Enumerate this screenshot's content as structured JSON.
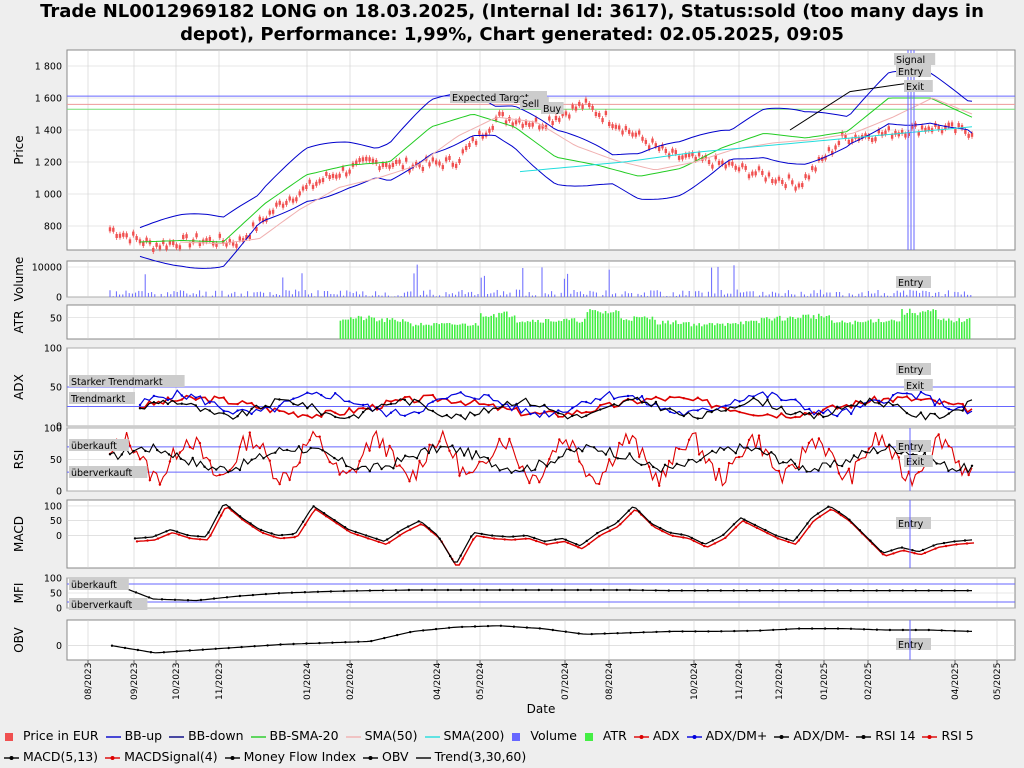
{
  "title": {
    "line1": "Trade NL0012969182 LONG on 18.03.2025, (Internal Id: 3617), Status:sold (too many days in",
    "line2": "depot), Performance: 1,99%, Chart generated: 02.05.2025, 09:05"
  },
  "colors": {
    "price": "#f05050",
    "bb_band": "#0000cc",
    "bb_sma": "#22cc22",
    "sma50": "#f0b0b0",
    "sma200": "#22dddd",
    "volume": "#6666ff",
    "atr": "#44ee44",
    "adx": "#dd0000",
    "dm_plus": "#0000dd",
    "dm_minus": "#000000",
    "rsi14": "#000000",
    "rsi5": "#dd0000",
    "grid": "#cfcfcf",
    "hline": "#6666ff",
    "plot_bg": "#ffffff"
  },
  "chart_data": [
    {
      "panel": "price",
      "type": "line",
      "ylabel": "Price",
      "yticks": [
        "800",
        "1 000",
        "1 200",
        "1 400",
        "1 600",
        "1 800"
      ],
      "ylim": [
        650,
        1900
      ],
      "xticks": [
        "08/2023",
        "09/2023",
        "10/2023",
        "11/2023",
        "01/2024",
        "02/2024",
        "04/2024",
        "05/2024",
        "07/2024",
        "08/2024",
        "10/2024",
        "11/2024",
        "12/2024",
        "01/2025",
        "02/2025",
        "04/2025",
        "05/2025"
      ],
      "annotations": [
        "Signal",
        "Entry",
        "Exit",
        "Expected Target",
        "Sell",
        "Buy"
      ],
      "horizontal_lines": [
        1612,
        1560,
        1530
      ],
      "series": [
        {
          "name": "Price in EUR",
          "x_idx": [
            0,
            1,
            2,
            3,
            4,
            5,
            6,
            7,
            8,
            9,
            10,
            11,
            12,
            13,
            14,
            15,
            16,
            17,
            18,
            19,
            20
          ],
          "values": [
            780,
            680,
            710,
            700,
            950,
            1100,
            1200,
            1180,
            1200,
            1480,
            1440,
            1560,
            1400,
            1240,
            1200,
            1130,
            1060,
            1350,
            1380,
            1420,
            1390
          ]
        },
        {
          "name": "BB-SMA-20",
          "values": [
            700,
            710,
            700,
            940,
            1120,
            1180,
            1200,
            1420,
            1500,
            1420,
            1230,
            1180,
            1110,
            1160,
            1290,
            1380,
            1350,
            1390,
            1600,
            1600,
            1480
          ]
        },
        {
          "name": "SMA(50)",
          "values": [
            700,
            690,
            720,
            900,
            1040,
            1100,
            1180,
            1360,
            1480,
            1450,
            1300,
            1210,
            1150,
            1200,
            1280,
            1320,
            1340,
            1380,
            1480,
            1600,
            1500
          ]
        },
        {
          "name": "SMA(200)",
          "values": [
            1140,
            1160,
            1180,
            1200,
            1230,
            1260,
            1280,
            1300,
            1320,
            1340,
            1360,
            1380,
            1400,
            1420
          ]
        },
        {
          "name": "Trend(3,30,60)",
          "values": [
            1400,
            1640,
            1690
          ]
        }
      ]
    },
    {
      "panel": "volume",
      "type": "bar",
      "ylabel": "Volume",
      "yticks": [
        "0",
        "10000"
      ],
      "ylim": [
        0,
        12000
      ],
      "annotations": [
        "Entry"
      ]
    },
    {
      "panel": "atr",
      "type": "bar",
      "ylabel": "ATR",
      "yticks": [
        "50"
      ],
      "ylim": [
        0,
        80
      ]
    },
    {
      "panel": "adx",
      "type": "line",
      "ylabel": "ADX",
      "yticks": [
        "0",
        "50",
        "100"
      ],
      "ylim": [
        0,
        100
      ],
      "annotations": [
        "Starker Trendmarkt",
        "Trendmarkt",
        "Entry",
        "Exit"
      ],
      "horizontal_lines": [
        50,
        25
      ]
    },
    {
      "panel": "rsi",
      "type": "line",
      "ylabel": "RSI",
      "yticks": [
        "0",
        "50",
        "100"
      ],
      "ylim": [
        0,
        100
      ],
      "annotations": [
        "überkauft",
        "überverkauft",
        "Entry",
        "Exit"
      ],
      "horizontal_lines": [
        70,
        30
      ]
    },
    {
      "panel": "macd",
      "type": "line",
      "ylabel": "MACD",
      "yticks": [
        "0",
        "50",
        "100"
      ],
      "ylim": [
        -110,
        120
      ],
      "annotations": [
        "Entry"
      ]
    },
    {
      "panel": "mfi",
      "type": "line",
      "ylabel": "MFI",
      "yticks": [
        "0",
        "50",
        "100"
      ],
      "ylim": [
        0,
        100
      ],
      "annotations": [
        "überkauft",
        "überverkauft"
      ],
      "horizontal_lines": [
        80,
        20
      ]
    },
    {
      "panel": "obv",
      "type": "line",
      "ylabel": "OBV",
      "yticks": [
        "0"
      ],
      "ylim": [
        -1,
        1.8
      ],
      "annotations": [
        "Entry"
      ]
    }
  ],
  "xaxis_label": "Date",
  "legend": [
    {
      "label": "Price in EUR",
      "color": "#f05050",
      "kind": "box"
    },
    {
      "label": "BB-up",
      "color": "#0000cc",
      "kind": "line"
    },
    {
      "label": "BB-down",
      "color": "#000080",
      "kind": "line"
    },
    {
      "label": "BB-SMA-20",
      "color": "#22cc22",
      "kind": "line"
    },
    {
      "label": "SMA(50)",
      "color": "#f0b0b0",
      "kind": "line"
    },
    {
      "label": "SMA(200)",
      "color": "#22dddd",
      "kind": "line"
    },
    {
      "label": "Volume",
      "color": "#6666ff",
      "kind": "box"
    },
    {
      "label": "ATR",
      "color": "#44ee44",
      "kind": "box"
    },
    {
      "label": "ADX",
      "color": "#dd0000",
      "kind": "dotline"
    },
    {
      "label": "ADX/DM+",
      "color": "#0000dd",
      "kind": "dotline"
    },
    {
      "label": "ADX/DM-",
      "color": "#000000",
      "kind": "dotline"
    },
    {
      "label": "RSI 14",
      "color": "#000000",
      "kind": "dotline"
    },
    {
      "label": "RSI 5",
      "color": "#dd0000",
      "kind": "dotline"
    },
    {
      "label": "MACD(5,13)",
      "color": "#000000",
      "kind": "dotline"
    },
    {
      "label": "MACDSignal(4)",
      "color": "#dd0000",
      "kind": "dotline"
    },
    {
      "label": "Money Flow Index",
      "color": "#000000",
      "kind": "dotline"
    },
    {
      "label": "OBV",
      "color": "#000000",
      "kind": "dotline"
    },
    {
      "label": "Trend(3,30,60)",
      "color": "#000000",
      "kind": "line"
    }
  ]
}
